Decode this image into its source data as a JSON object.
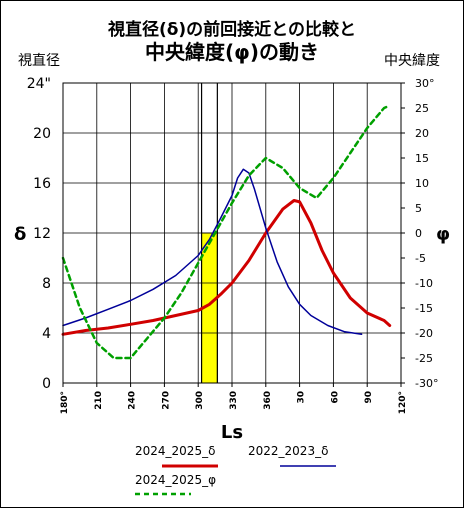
{
  "chart_data": {
    "type": "line",
    "title_line1": "視直径(δ)の前回接近との比較と",
    "title_line2": "中央緯度(φ)の動き",
    "left_axis_title": "視直径",
    "right_axis_title": "中央緯度",
    "left_axis_symbol": "δ",
    "right_axis_symbol": "φ",
    "xlabel": "Ls",
    "x_ticks": [
      "180°",
      "210",
      "240",
      "270",
      "300",
      "330",
      "360",
      "30",
      "60",
      "90",
      "120°"
    ],
    "left_ticks": [
      "0",
      "4",
      "8",
      "12",
      "16",
      "20",
      "24\""
    ],
    "right_ticks": [
      "-30°",
      "-25",
      "-20",
      "-15",
      "-10",
      "-5",
      "0",
      "5",
      "10",
      "15",
      "20",
      "25",
      "30°"
    ],
    "y_left_range": [
      0,
      24
    ],
    "y_right_range": [
      -30,
      30
    ],
    "highlight_band": {
      "from": 303,
      "to": 317,
      "color": "#ffff00"
    },
    "vertical_lines": [
      303,
      317
    ],
    "series": [
      {
        "name": "2024_2025_δ",
        "color": "#d00000",
        "axis": "left",
        "style": "solid",
        "points": [
          [
            180,
            3.9
          ],
          [
            200,
            4.2
          ],
          [
            220,
            4.4
          ],
          [
            240,
            4.7
          ],
          [
            260,
            5.0
          ],
          [
            280,
            5.4
          ],
          [
            300,
            5.8
          ],
          [
            310,
            6.3
          ],
          [
            320,
            7.1
          ],
          [
            330,
            8.0
          ],
          [
            345,
            9.8
          ],
          [
            360,
            12.0
          ],
          [
            375,
            13.9
          ],
          [
            385,
            14.6
          ],
          [
            390,
            14.5
          ],
          [
            400,
            12.8
          ],
          [
            410,
            10.6
          ],
          [
            420,
            8.8
          ],
          [
            435,
            6.8
          ],
          [
            450,
            5.6
          ],
          [
            465,
            5.0
          ],
          [
            470,
            4.6
          ]
        ]
      },
      {
        "name": "2022_2023_δ",
        "color": "#000099",
        "axis": "left",
        "style": "solid",
        "points": [
          [
            180,
            4.6
          ],
          [
            200,
            5.2
          ],
          [
            220,
            5.9
          ],
          [
            240,
            6.6
          ],
          [
            260,
            7.5
          ],
          [
            280,
            8.6
          ],
          [
            300,
            10.2
          ],
          [
            310,
            11.5
          ],
          [
            320,
            13.2
          ],
          [
            330,
            15.0
          ],
          [
            335,
            16.4
          ],
          [
            340,
            17.1
          ],
          [
            345,
            16.8
          ],
          [
            350,
            15.5
          ],
          [
            360,
            12.4
          ],
          [
            370,
            9.7
          ],
          [
            380,
            7.7
          ],
          [
            390,
            6.3
          ],
          [
            400,
            5.4
          ],
          [
            415,
            4.6
          ],
          [
            430,
            4.1
          ],
          [
            445,
            3.9
          ]
        ]
      },
      {
        "name": "2024_2025_φ",
        "color": "#00a000",
        "axis": "right",
        "style": "dashed",
        "points": [
          [
            180,
            -5
          ],
          [
            195,
            -15
          ],
          [
            210,
            -22
          ],
          [
            225,
            -25
          ],
          [
            240,
            -25
          ],
          [
            255,
            -21
          ],
          [
            270,
            -17
          ],
          [
            285,
            -12
          ],
          [
            300,
            -6
          ],
          [
            315,
            0
          ],
          [
            330,
            6
          ],
          [
            345,
            11.5
          ],
          [
            360,
            15
          ],
          [
            375,
            13
          ],
          [
            390,
            9
          ],
          [
            405,
            7
          ],
          [
            420,
            11
          ],
          [
            435,
            16
          ],
          [
            450,
            21
          ],
          [
            465,
            25
          ],
          [
            470,
            25.5
          ]
        ]
      }
    ]
  }
}
